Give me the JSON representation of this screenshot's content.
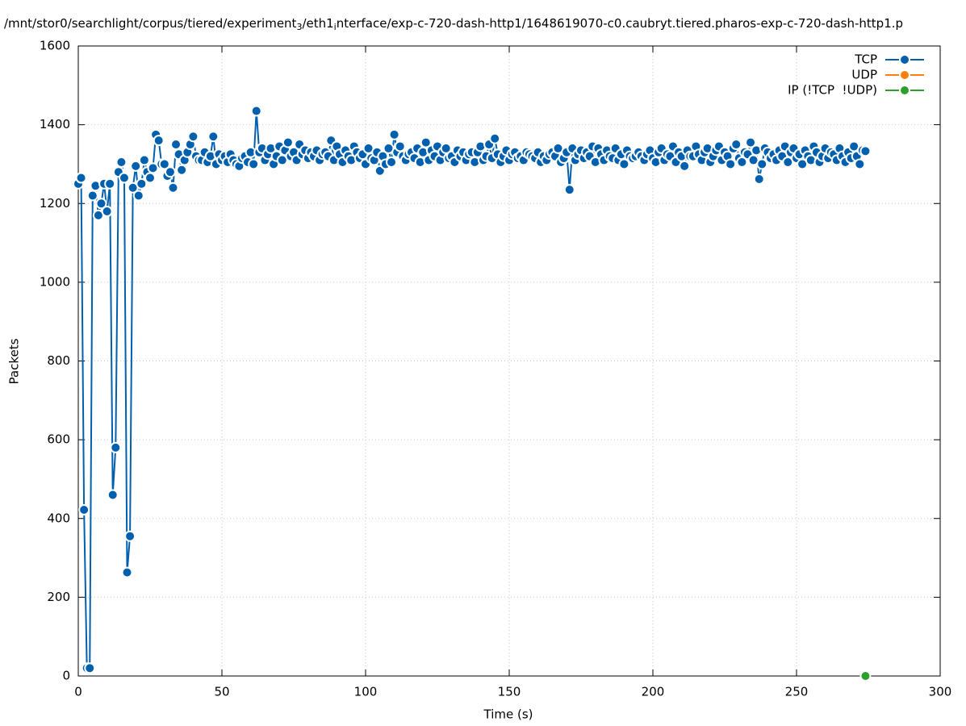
{
  "chart_data": {
    "type": "line",
    "title_parts": [
      "/mnt/stor0/searchlight/corpus/tiered/experiment",
      "3",
      "/eth1",
      "i",
      "nterface/exp-c-720-dash-http1/1648619070-c0.caubryt.tiered.pharos-exp-c-720-dash-http1.p"
    ],
    "x_label": "Time (s)",
    "y_label": "Packets",
    "xlim": [
      0,
      300
    ],
    "xticks": [
      0,
      50,
      100,
      150,
      200,
      250,
      300
    ],
    "ylim": [
      0,
      1600
    ],
    "yticks": [
      0,
      200,
      400,
      600,
      800,
      1000,
      1200,
      1400,
      1600
    ],
    "grid": true,
    "legend": "top-right",
    "series": [
      {
        "name": "TCP",
        "color": "#0060ad",
        "x": [
          0,
          1,
          2,
          3,
          4,
          5,
          6,
          7,
          8,
          9,
          10,
          11,
          12,
          13,
          14,
          15,
          16,
          17,
          18,
          19,
          20,
          21,
          22,
          23,
          24,
          25,
          26,
          27,
          28,
          29,
          30,
          31,
          32,
          33,
          34,
          35,
          36,
          37,
          38,
          39,
          40,
          41,
          42,
          43,
          44,
          45,
          46,
          47,
          48,
          49,
          50,
          51,
          52,
          53,
          54,
          55,
          56,
          57,
          58,
          59,
          60,
          61,
          62,
          63,
          64,
          65,
          66,
          67,
          68,
          69,
          70,
          71,
          72,
          73,
          74,
          75,
          76,
          77,
          78,
          79,
          80,
          81,
          82,
          83,
          84,
          85,
          86,
          87,
          88,
          89,
          90,
          91,
          92,
          93,
          94,
          95,
          96,
          97,
          98,
          99,
          100,
          101,
          102,
          103,
          104,
          105,
          106,
          107,
          108,
          109,
          110,
          111,
          112,
          113,
          114,
          115,
          116,
          117,
          118,
          119,
          120,
          121,
          122,
          123,
          124,
          125,
          126,
          127,
          128,
          129,
          130,
          131,
          132,
          133,
          134,
          135,
          136,
          137,
          138,
          139,
          140,
          141,
          142,
          143,
          144,
          145,
          146,
          147,
          148,
          149,
          150,
          151,
          152,
          153,
          154,
          155,
          156,
          157,
          158,
          159,
          160,
          161,
          162,
          163,
          164,
          165,
          166,
          167,
          168,
          169,
          170,
          171,
          172,
          173,
          174,
          175,
          176,
          177,
          178,
          179,
          180,
          181,
          182,
          183,
          184,
          185,
          186,
          187,
          188,
          189,
          190,
          191,
          192,
          193,
          194,
          195,
          196,
          197,
          198,
          199,
          200,
          201,
          202,
          203,
          204,
          205,
          206,
          207,
          208,
          209,
          210,
          211,
          212,
          213,
          214,
          215,
          216,
          217,
          218,
          219,
          220,
          221,
          222,
          223,
          224,
          225,
          226,
          227,
          228,
          229,
          230,
          231,
          232,
          233,
          234,
          235,
          236,
          237,
          238,
          239,
          240,
          241,
          242,
          243,
          244,
          245,
          246,
          247,
          248,
          249,
          250,
          251,
          252,
          253,
          254,
          255,
          256,
          257,
          258,
          259,
          260,
          261,
          262,
          263,
          264,
          265,
          266,
          267,
          268,
          269,
          270,
          271,
          272,
          273,
          274
        ],
        "values": [
          1250,
          1265,
          422,
          20,
          20,
          1220,
          1245,
          1170,
          1200,
          1250,
          1180,
          1250,
          460,
          580,
          1280,
          1305,
          1265,
          263,
          355,
          1240,
          1295,
          1220,
          1250,
          1310,
          1280,
          1265,
          1290,
          1375,
          1360,
          1300,
          1300,
          1270,
          1280,
          1240,
          1350,
          1325,
          1285,
          1310,
          1330,
          1350,
          1370,
          1320,
          1310,
          1310,
          1330,
          1305,
          1320,
          1370,
          1300,
          1325,
          1310,
          1320,
          1305,
          1325,
          1310,
          1300,
          1295,
          1315,
          1320,
          1305,
          1330,
          1300,
          1435,
          1330,
          1340,
          1310,
          1325,
          1340,
          1300,
          1320,
          1345,
          1310,
          1335,
          1355,
          1320,
          1330,
          1310,
          1350,
          1325,
          1335,
          1315,
          1330,
          1320,
          1335,
          1310,
          1325,
          1330,
          1320,
          1360,
          1310,
          1345,
          1325,
          1305,
          1335,
          1320,
          1310,
          1345,
          1330,
          1315,
          1325,
          1300,
          1340,
          1315,
          1310,
          1330,
          1283,
          1320,
          1300,
          1340,
          1305,
          1375,
          1330,
          1345,
          1320,
          1310,
          1325,
          1330,
          1315,
          1340,
          1305,
          1330,
          1355,
          1310,
          1335,
          1320,
          1345,
          1310,
          1330,
          1340,
          1315,
          1320,
          1305,
          1335,
          1320,
          1330,
          1310,
          1325,
          1330,
          1305,
          1330,
          1345,
          1310,
          1320,
          1350,
          1315,
          1365,
          1325,
          1305,
          1320,
          1335,
          1310,
          1325,
          1330,
          1315,
          1320,
          1310,
          1330,
          1325,
          1320,
          1315,
          1330,
          1305,
          1320,
          1310,
          1325,
          1330,
          1320,
          1340,
          1305,
          1315,
          1330,
          1235,
          1340,
          1310,
          1325,
          1335,
          1315,
          1330,
          1320,
          1345,
          1305,
          1340,
          1325,
          1310,
          1335,
          1320,
          1315,
          1340,
          1310,
          1325,
          1300,
          1335,
          1320,
          1315,
          1320,
          1330,
          1320,
          1310,
          1325,
          1335,
          1315,
          1305,
          1330,
          1340,
          1310,
          1325,
          1320,
          1345,
          1305,
          1330,
          1320,
          1295,
          1335,
          1320,
          1320,
          1345,
          1325,
          1310,
          1330,
          1340,
          1305,
          1320,
          1335,
          1345,
          1310,
          1330,
          1320,
          1300,
          1340,
          1350,
          1315,
          1305,
          1330,
          1325,
          1355,
          1310,
          1335,
          1262,
          1300,
          1340,
          1330,
          1315,
          1325,
          1310,
          1335,
          1320,
          1345,
          1305,
          1330,
          1340,
          1315,
          1325,
          1300,
          1335,
          1320,
          1310,
          1345,
          1330,
          1305,
          1320,
          1340,
          1315,
          1330,
          1325,
          1310,
          1340,
          1320,
          1305,
          1330,
          1315,
          1345,
          1320,
          1300,
          1335,
          1333
        ]
      },
      {
        "name": "UDP",
        "color": "#ff7f0e",
        "x": [],
        "values": []
      },
      {
        "name": "IP (!TCP  !UDP)",
        "color": "#2ca02c",
        "x": [
          274
        ],
        "values": [
          0
        ]
      }
    ]
  }
}
